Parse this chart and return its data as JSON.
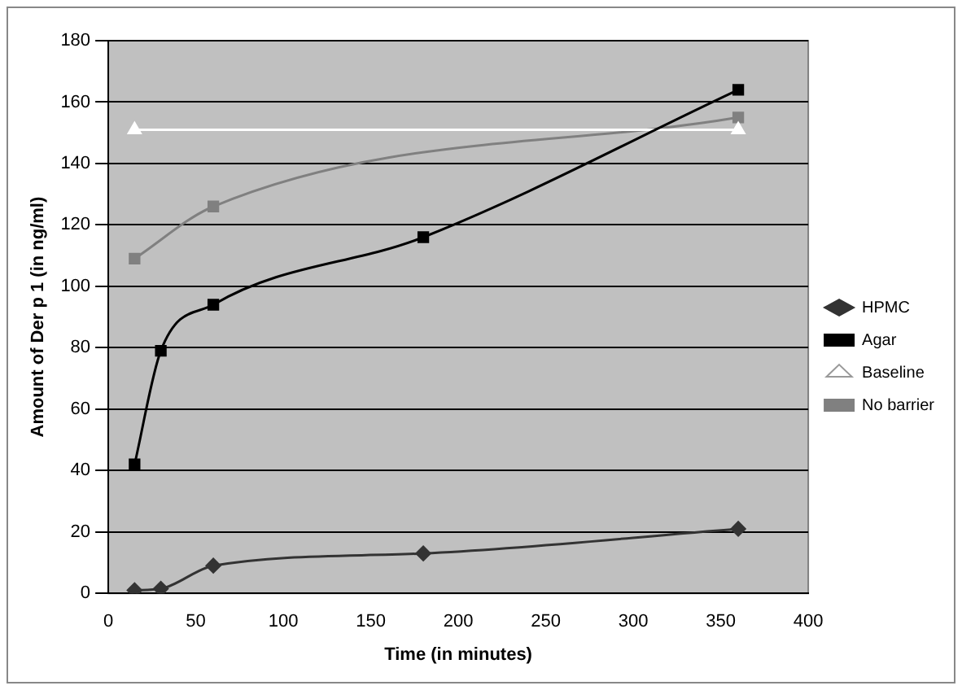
{
  "chart_data": {
    "type": "line",
    "xlabel": "Time (in minutes)",
    "ylabel": "Amount of Der p 1 (in ng/ml)",
    "xlim": [
      0,
      400
    ],
    "xticks": [
      0,
      50,
      100,
      150,
      200,
      250,
      300,
      350,
      400
    ],
    "ylim": [
      0,
      180
    ],
    "yticks": [
      0,
      20,
      40,
      60,
      80,
      100,
      120,
      140,
      160,
      180
    ],
    "grid": "y",
    "legend": "right",
    "series": [
      {
        "name": "HPMC",
        "color": "#333333",
        "marker": "diamond",
        "x": [
          15,
          30,
          60,
          180,
          360
        ],
        "values": [
          1,
          1.5,
          9,
          13,
          21
        ]
      },
      {
        "name": "Agar",
        "color": "#000000",
        "marker": "square",
        "x": [
          15,
          30,
          60,
          180,
          360
        ],
        "values": [
          42,
          79,
          94,
          116,
          164
        ]
      },
      {
        "name": "Baseline",
        "color": "#ffffff",
        "marker": "triangle",
        "x": [
          15,
          360
        ],
        "values": [
          151,
          151
        ]
      },
      {
        "name": "No barrier",
        "color": "#808080",
        "marker": "square",
        "x": [
          15,
          60,
          360
        ],
        "values": [
          109,
          126,
          155
        ]
      }
    ]
  }
}
